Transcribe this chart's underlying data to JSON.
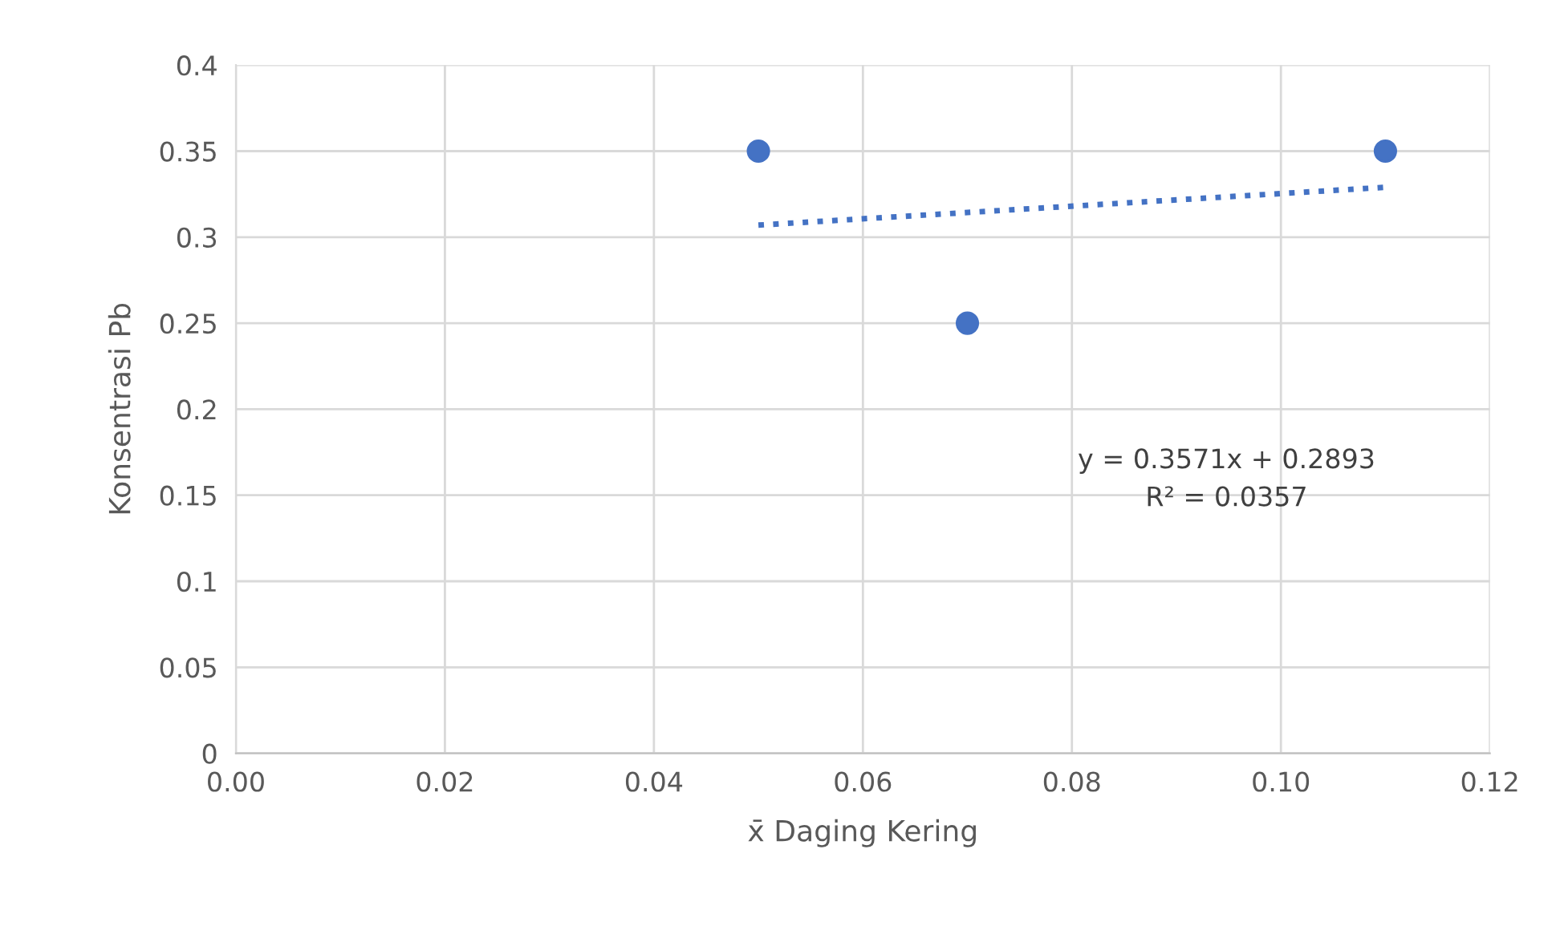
{
  "chart_data": {
    "type": "scatter",
    "xlabel": "x̄ Daging Kering",
    "ylabel": "Konsentrasi Pb",
    "series": [
      {
        "color": "#4472c4",
        "marker": "circle",
        "x": [
          0.05,
          0.07,
          0.11
        ],
        "values": [
          0.35,
          0.25,
          0.35
        ]
      },
      {
        "type": "line",
        "color": "#4472c4",
        "marker": "none",
        "line_style": "dotted",
        "x": [
          0.05,
          0.11
        ],
        "values": [
          0.307,
          0.329
        ]
      }
    ],
    "xlim": [
      0,
      0.12
    ],
    "xticks": [
      {
        "value": 0,
        "label": "0.00"
      },
      {
        "value": 0.02,
        "label": "0.02"
      },
      {
        "value": 0.04,
        "label": "0.04"
      },
      {
        "value": 0.06,
        "label": "0.06"
      },
      {
        "value": 0.08,
        "label": "0.08"
      },
      {
        "value": 0.1,
        "label": "0.10"
      },
      {
        "value": 0.12,
        "label": "0.12"
      }
    ],
    "ylim": [
      0,
      0.4
    ],
    "yticks": [
      0,
      0.05,
      0.1,
      0.15,
      0.2,
      0.25,
      0.3,
      0.35,
      0.4
    ],
    "grid": true,
    "annotations": [
      "y = 0.3571x + 0.2893",
      "R² = 0.0357"
    ]
  }
}
